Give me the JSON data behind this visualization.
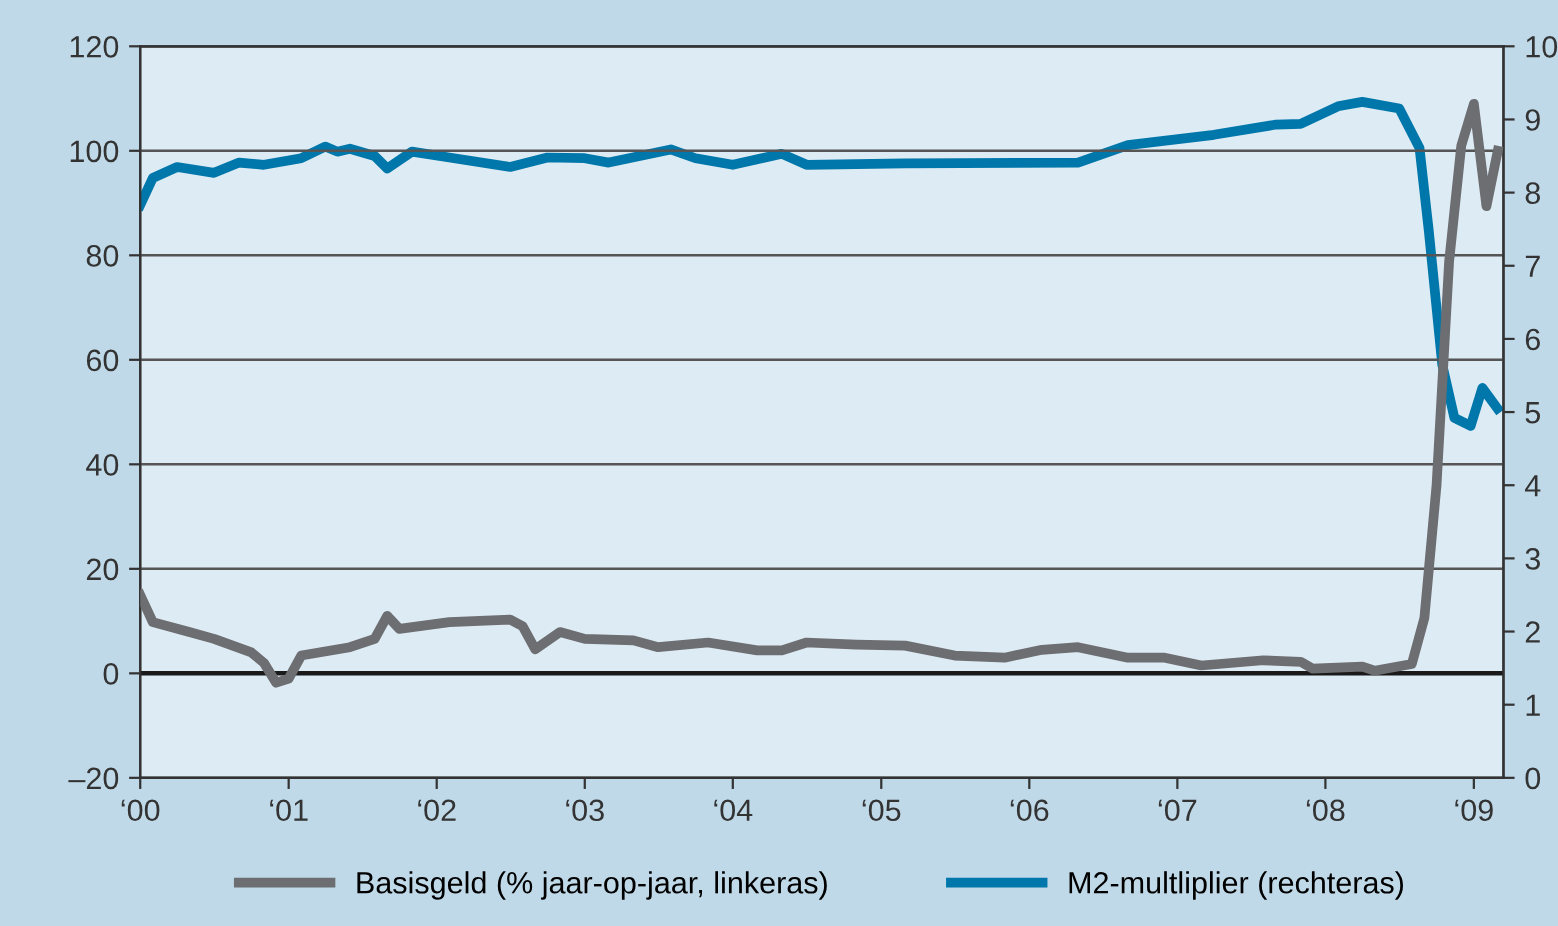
{
  "chart_data": {
    "type": "line",
    "grid": "y",
    "legend": "bottom",
    "line_style": "solid",
    "marker": "none",
    "xlim": [
      "2000-01-01",
      "2009-03-15"
    ],
    "xticks": [
      {
        "value": "2000",
        "label": "‘00"
      },
      {
        "value": "2001",
        "label": "‘01"
      },
      {
        "value": "2002",
        "label": "‘02"
      },
      {
        "value": "2003",
        "label": "‘03"
      },
      {
        "value": "2004",
        "label": "‘04"
      },
      {
        "value": "2005",
        "label": "‘05"
      },
      {
        "value": "2006",
        "label": "‘06"
      },
      {
        "value": "2007",
        "label": "‘07"
      },
      {
        "value": "2008",
        "label": "‘08"
      },
      {
        "value": "2009",
        "label": "‘09"
      }
    ],
    "ylim": [
      -20,
      120
    ],
    "yticks": [
      {
        "value": -20,
        "label": "–20"
      },
      0,
      20,
      40,
      60,
      80,
      100,
      120
    ],
    "y2lim": [
      0,
      10
    ],
    "y2ticks": [
      0,
      1,
      2,
      3,
      4,
      5,
      6,
      7,
      8,
      9,
      10
    ],
    "ref_lines": [
      {
        "axis": "y",
        "value": 0,
        "color": "#1a1a1a"
      }
    ],
    "series": [
      {
        "name": "Basisgeld (% jaar-op-jaar, linkeras)",
        "color": "#6d6e71",
        "x": [
          "2000-01",
          "2000-02",
          "2000-05",
          "2000-07",
          "2000-10",
          "2000-11",
          "2000-12",
          "2001-01",
          "2001-02",
          "2001-06",
          "2001-08",
          "2001-09",
          "2001-10",
          "2002-02",
          "2002-07",
          "2002-08",
          "2002-09",
          "2002-11",
          "2003-01",
          "2003-05",
          "2003-07",
          "2003-11",
          "2004-03",
          "2004-05",
          "2004-07",
          "2004-11",
          "2005-03",
          "2005-07",
          "2005-11",
          "2006-02",
          "2006-05",
          "2006-09",
          "2006-12",
          "2007-03",
          "2007-08",
          "2007-11",
          "2007-12",
          "2008-04",
          "2008-05",
          "2008-08",
          "2008-09",
          "2008-10",
          "2008-11",
          "2008-12",
          "2009-01",
          "2009-02",
          "2009-03"
        ],
        "values": [
          15,
          9.8,
          7.9,
          6.6,
          4,
          2,
          -1.8,
          -1,
          3.4,
          5,
          6.6,
          11,
          8.5,
          9.8,
          10.3,
          9,
          4.6,
          7.9,
          6.6,
          6.3,
          5,
          5.9,
          4.4,
          4.4,
          5.9,
          5.5,
          5.3,
          3.4,
          3,
          4.5,
          5,
          3,
          3,
          1.5,
          2.5,
          2.2,
          0.9,
          1.3,
          0.5,
          1.8,
          10.6,
          36,
          78.8,
          101,
          109,
          89.4,
          100
        ]
      },
      {
        "name": "M2-multliplier (rechteras)",
        "color": "#0077aa",
        "axis": "y2",
        "x": [
          "2000-01",
          "2000-02",
          "2000-04",
          "2000-07",
          "2000-09",
          "2000-11",
          "2001-02",
          "2001-04",
          "2001-05",
          "2001-06",
          "2001-08",
          "2001-09",
          "2001-11",
          "2002-02",
          "2002-07",
          "2002-10",
          "2003-01",
          "2003-03",
          "2003-08",
          "2003-10",
          "2004-01",
          "2004-05",
          "2004-07",
          "2005-03",
          "2006-05",
          "2006-09",
          "2007-04",
          "2007-09",
          "2007-11",
          "2008-02",
          "2008-04",
          "2008-07",
          "2008-08-20",
          "2008-09-12",
          "2008-10-15",
          "2008-11-14",
          "2008-12-24",
          "2009-01-22",
          "2009-02-28"
        ],
        "values": [
          7.83,
          8.2,
          8.35,
          8.27,
          8.41,
          8.38,
          8.47,
          8.63,
          8.56,
          8.6,
          8.5,
          8.33,
          8.56,
          8.48,
          8.35,
          8.48,
          8.47,
          8.41,
          8.59,
          8.47,
          8.38,
          8.53,
          8.38,
          8.4,
          8.41,
          8.65,
          8.79,
          8.93,
          8.94,
          9.18,
          9.24,
          9.15,
          8.61,
          7.47,
          5.65,
          4.92,
          4.81,
          5.33,
          5.05
        ]
      }
    ]
  }
}
